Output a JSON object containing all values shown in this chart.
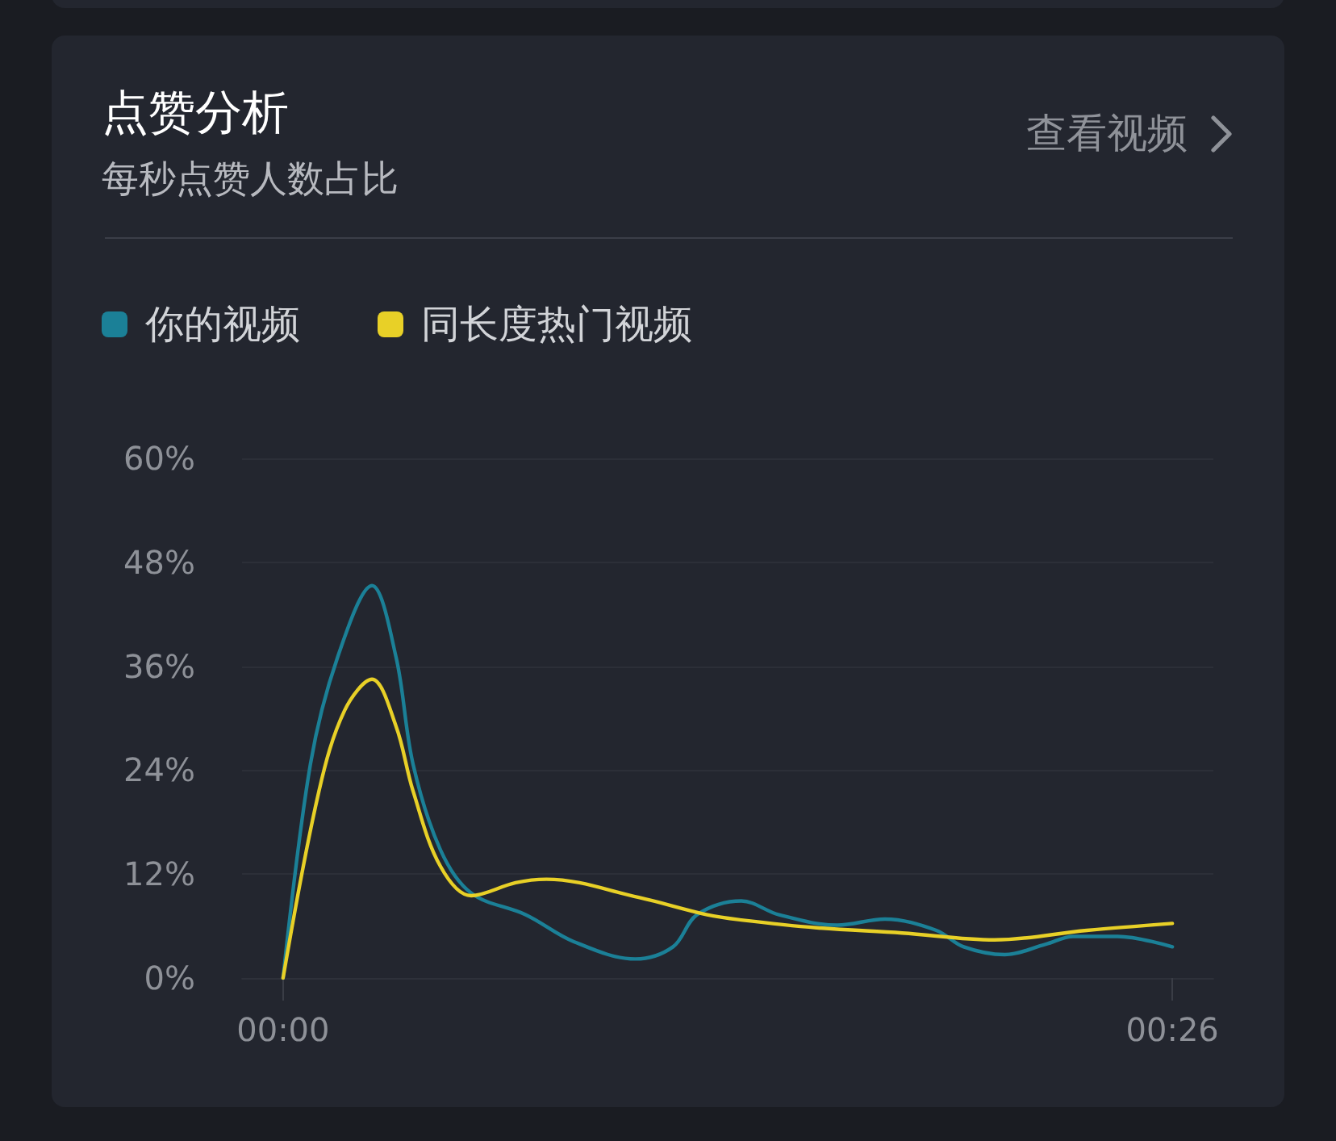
{
  "chart_data": {
    "type": "line",
    "title": "点赞分析",
    "subtitle": "每秒点赞人数占比",
    "annotations": [
      "查看视频"
    ],
    "series": [
      {
        "name": "你的视频",
        "color": "#1b8097",
        "x": [
          0,
          0.8,
          1.6,
          2.6,
          3.3,
          3.8,
          4.6,
          5.5,
          7.1,
          8.5,
          10.3,
          11.4,
          12.1,
          13.4,
          14.5,
          16.2,
          17.6,
          19.1,
          19.9,
          21.1,
          22.3,
          23.1,
          24.4,
          26
        ],
        "values": [
          0,
          24.7,
          37.1,
          45.3,
          37.1,
          24.7,
          14.8,
          9.8,
          7.3,
          4.2,
          2.2,
          3.6,
          7.3,
          8.9,
          7.3,
          6.1,
          6.8,
          5.5,
          3.6,
          2.7,
          3.9,
          4.8,
          4.8,
          3.6
        ]
      },
      {
        "name": "同长度热门视频",
        "color": "#e8d027",
        "x": [
          0,
          1.05,
          1.8,
          2.6,
          3.3,
          3.8,
          4.6,
          5.5,
          6.8,
          7.7,
          10.4,
          12.4,
          13.4,
          15.6,
          18.1,
          20.8,
          23.5,
          26
        ],
        "values": [
          0,
          21.6,
          30.9,
          34.5,
          29.1,
          21.6,
          12.9,
          9.5,
          11,
          11.4,
          9.3,
          7.3,
          6.7,
          5.8,
          5.2,
          4.4,
          5.5,
          6.3
        ]
      }
    ],
    "xlim": [
      -1.2,
      27.2
    ],
    "xticks": [
      {
        "value": 0,
        "label": "00:00"
      },
      {
        "value": 26,
        "label": "00:26"
      }
    ],
    "ylim": [
      0,
      60
    ],
    "yticks": [
      {
        "value": 0,
        "label": "0%"
      },
      {
        "value": 12,
        "label": "12%"
      },
      {
        "value": 24,
        "label": "24%"
      },
      {
        "value": 36,
        "label": "36%"
      },
      {
        "value": 48,
        "label": "48%"
      },
      {
        "value": 60,
        "label": "60%"
      }
    ],
    "grid": "y",
    "legend": "top left",
    "marker": "none",
    "line_style": "solid"
  }
}
